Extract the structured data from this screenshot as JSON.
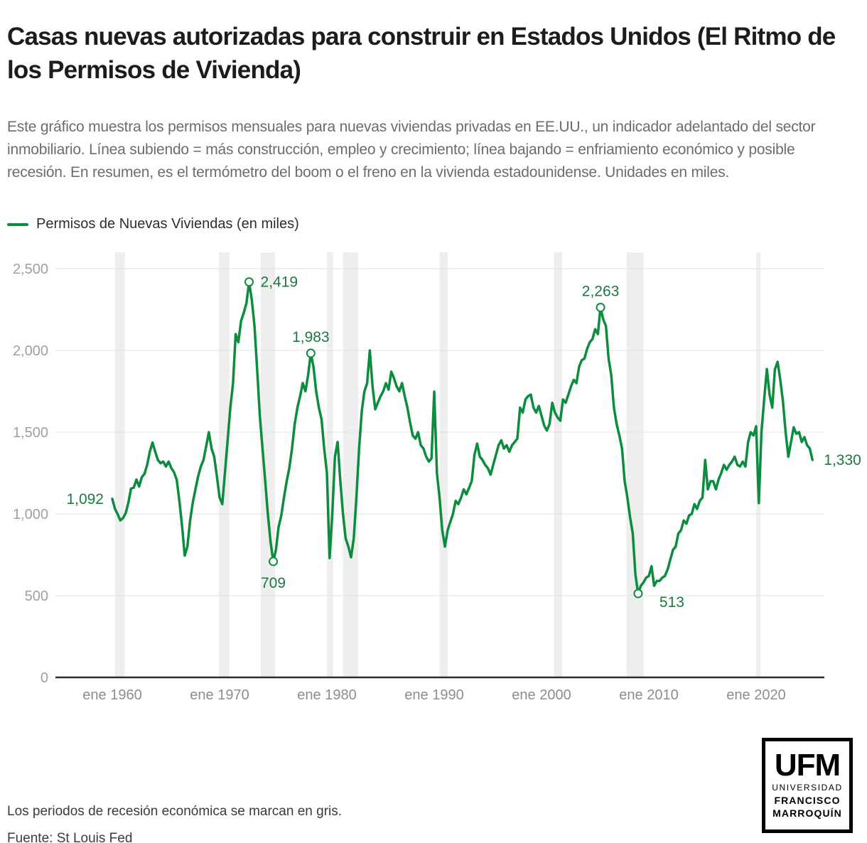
{
  "title": "Casas nuevas autorizadas para construir en Estados Unidos (El Ritmo de los Permisos de Vivienda)",
  "description": "Este gráfico muestra los permisos mensuales para nuevas viviendas privadas en EE.UU., un indicador adelantado del sector inmobiliario. Línea subiendo = más construcción, empleo y crecimiento; línea bajando = enfriamiento económico y posible recesión. En resumen, es el termómetro del boom o el freno en la vivienda estadounidense. Unidades en miles.",
  "legend": {
    "label": "Permisos de Nuevas Viviendas (en miles)",
    "color": "#0c8c3f"
  },
  "footer": {
    "note": "Los periodos de recesión económica se marcan en gris.",
    "source": "Fuente: St Louis Fed"
  },
  "logo": {
    "acronym": "UFM",
    "line1": "UNIVERSIDAD",
    "line2": "FRANCISCO",
    "line3": "MARROQUÍN"
  },
  "chart_data": {
    "type": "line",
    "title": "Casas nuevas autorizadas para construir en Estados Unidos (El Ritmo de los Permisos de Vivienda)",
    "series_name": "Permisos de Nuevas Viviendas (en miles)",
    "units": "miles de viviendas",
    "x_start_year": 1960,
    "x_step_years": 0.25,
    "ylim": [
      0,
      2600
    ],
    "grid": "horizontal",
    "legend_position": "top-left",
    "colors": {
      "line": "#0c8c3f",
      "annotation": "#1a7a40",
      "recession_band": "#eeeeee",
      "grid": "#e2e2e2",
      "axis": "#2e2e2e",
      "y_tick_label": "#9f9f9f",
      "x_tick_label": "#8d8d8d"
    },
    "y_ticks": [
      {
        "label": "2,500",
        "value": 2500
      },
      {
        "label": "2,000",
        "value": 2000
      },
      {
        "label": "1,500",
        "value": 1500
      },
      {
        "label": "1,000",
        "value": 1000
      },
      {
        "label": "500",
        "value": 500
      },
      {
        "label": "0",
        "value": 0
      }
    ],
    "x_ticks": [
      {
        "label": "ene 1960",
        "year": 1960
      },
      {
        "label": "ene 1970",
        "year": 1970
      },
      {
        "label": "ene 1980",
        "year": 1980
      },
      {
        "label": "ene 1990",
        "year": 1990
      },
      {
        "label": "ene 2000",
        "year": 2000
      },
      {
        "label": "ene 2010",
        "year": 2010
      },
      {
        "label": "ene 2020",
        "year": 2020
      }
    ],
    "annotations": [
      {
        "label": "1,092",
        "year": 1960.0,
        "value": 1092,
        "marker": false,
        "placement": "left"
      },
      {
        "label": "2,419",
        "year": 1972.75,
        "value": 2419,
        "marker": true,
        "placement": "right"
      },
      {
        "label": "1,983",
        "year": 1978.5,
        "value": 1983,
        "marker": true,
        "placement": "above"
      },
      {
        "label": "709",
        "year": 1975.0,
        "value": 709,
        "marker": true,
        "placement": "below"
      },
      {
        "label": "2,263",
        "year": 2005.5,
        "value": 2263,
        "marker": true,
        "placement": "above"
      },
      {
        "label": "513",
        "year": 2009.0,
        "value": 513,
        "marker": true,
        "placement": "below-right"
      },
      {
        "label": "1,330",
        "year": 2025.25,
        "value": 1330,
        "marker": false,
        "placement": "right"
      }
    ],
    "recessions": [
      [
        1960.25,
        1961.17
      ],
      [
        1969.92,
        1970.92
      ],
      [
        1973.83,
        1975.17
      ],
      [
        1980.0,
        1980.58
      ],
      [
        1981.5,
        1982.92
      ],
      [
        1990.5,
        1991.25
      ],
      [
        2001.17,
        2001.92
      ],
      [
        2007.92,
        2009.5
      ],
      [
        2020.0,
        2020.42
      ]
    ],
    "values": [
      1092,
      1031,
      998,
      960,
      975,
      1005,
      1070,
      1155,
      1160,
      1210,
      1168,
      1225,
      1245,
      1300,
      1380,
      1437,
      1380,
      1330,
      1310,
      1320,
      1290,
      1320,
      1280,
      1255,
      1210,
      1080,
      930,
      745,
      800,
      960,
      1070,
      1150,
      1230,
      1290,
      1330,
      1413,
      1500,
      1400,
      1350,
      1230,
      1100,
      1060,
      1250,
      1450,
      1650,
      1800,
      2100,
      2050,
      2180,
      2230,
      2290,
      2419,
      2310,
      2150,
      1880,
      1600,
      1400,
      1200,
      1000,
      830,
      709,
      780,
      920,
      990,
      1100,
      1200,
      1280,
      1400,
      1550,
      1650,
      1720,
      1800,
      1750,
      1850,
      1983,
      1900,
      1750,
      1650,
      1580,
      1400,
      1250,
      730,
      1000,
      1350,
      1440,
      1200,
      1000,
      850,
      800,
      735,
      850,
      1100,
      1400,
      1630,
      1750,
      1800,
      2000,
      1780,
      1640,
      1680,
      1720,
      1750,
      1800,
      1760,
      1870,
      1830,
      1780,
      1750,
      1800,
      1720,
      1650,
      1560,
      1480,
      1460,
      1500,
      1420,
      1400,
      1350,
      1320,
      1340,
      1748,
      1250,
      1100,
      900,
      800,
      900,
      950,
      1000,
      1080,
      1060,
      1100,
      1150,
      1120,
      1160,
      1200,
      1360,
      1430,
      1350,
      1330,
      1300,
      1280,
      1240,
      1300,
      1360,
      1420,
      1450,
      1400,
      1420,
      1380,
      1420,
      1440,
      1460,
      1650,
      1620,
      1700,
      1720,
      1730,
      1650,
      1620,
      1660,
      1600,
      1540,
      1510,
      1550,
      1680,
      1620,
      1590,
      1570,
      1700,
      1680,
      1730,
      1780,
      1820,
      1800,
      1900,
      1940,
      1950,
      2010,
      2050,
      2070,
      2130,
      2100,
      2263,
      2190,
      2150,
      1950,
      1850,
      1650,
      1550,
      1480,
      1400,
      1200,
      1100,
      980,
      880,
      630,
      513,
      560,
      580,
      610,
      620,
      680,
      560,
      590,
      590,
      610,
      620,
      660,
      720,
      780,
      800,
      880,
      900,
      960,
      940,
      990,
      1000,
      1060,
      1030,
      1080,
      1100,
      1330,
      1150,
      1200,
      1200,
      1150,
      1210,
      1250,
      1300,
      1270,
      1300,
      1320,
      1350,
      1300,
      1290,
      1320,
      1290,
      1440,
      1500,
      1480,
      1536,
      1066,
      1500,
      1700,
      1886,
      1730,
      1650,
      1885,
      1930,
      1820,
      1685,
      1500,
      1350,
      1440,
      1530,
      1490,
      1500,
      1440,
      1470,
      1420,
      1400,
      1330
    ]
  }
}
